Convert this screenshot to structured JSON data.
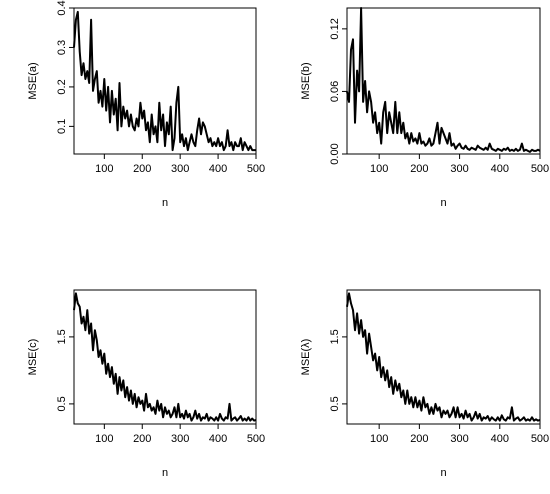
{
  "chart_data": [
    {
      "type": "line",
      "panel": "top-left",
      "xlabel": "n",
      "ylabel": "MSE(a)",
      "xlim": [
        20,
        500
      ],
      "ylim": [
        0.03,
        0.4
      ],
      "xticks": [
        100,
        200,
        300,
        400,
        500
      ],
      "yticks": [
        0.1,
        0.2,
        0.3,
        0.4
      ],
      "yticklabels": [
        "0.1",
        "0.2",
        "0.3",
        "0.4"
      ],
      "series": [
        {
          "x": [
            20,
            25,
            30,
            35,
            40,
            45,
            50,
            55,
            60,
            65,
            70,
            75,
            80,
            85,
            90,
            95,
            100,
            105,
            110,
            115,
            120,
            125,
            130,
            135,
            140,
            145,
            150,
            155,
            160,
            165,
            170,
            175,
            180,
            185,
            190,
            195,
            200,
            205,
            210,
            215,
            220,
            225,
            230,
            235,
            240,
            245,
            250,
            255,
            260,
            265,
            270,
            275,
            280,
            285,
            290,
            295,
            300,
            305,
            310,
            315,
            320,
            325,
            330,
            335,
            340,
            345,
            350,
            355,
            360,
            365,
            370,
            375,
            380,
            385,
            390,
            395,
            400,
            405,
            410,
            415,
            420,
            425,
            430,
            435,
            440,
            445,
            450,
            455,
            460,
            465,
            470,
            475,
            480,
            485,
            490,
            495,
            500
          ],
          "y": [
            0.3,
            0.37,
            0.39,
            0.29,
            0.23,
            0.26,
            0.22,
            0.24,
            0.21,
            0.37,
            0.19,
            0.22,
            0.24,
            0.16,
            0.19,
            0.15,
            0.22,
            0.14,
            0.2,
            0.11,
            0.19,
            0.13,
            0.17,
            0.09,
            0.21,
            0.1,
            0.15,
            0.12,
            0.14,
            0.1,
            0.13,
            0.1,
            0.09,
            0.12,
            0.1,
            0.16,
            0.12,
            0.14,
            0.09,
            0.11,
            0.06,
            0.13,
            0.08,
            0.1,
            0.06,
            0.16,
            0.09,
            0.13,
            0.05,
            0.11,
            0.08,
            0.15,
            0.04,
            0.07,
            0.16,
            0.2,
            0.06,
            0.08,
            0.05,
            0.07,
            0.04,
            0.06,
            0.08,
            0.06,
            0.05,
            0.09,
            0.12,
            0.08,
            0.11,
            0.1,
            0.08,
            0.06,
            0.07,
            0.05,
            0.06,
            0.05,
            0.07,
            0.05,
            0.06,
            0.04,
            0.05,
            0.09,
            0.05,
            0.06,
            0.04,
            0.06,
            0.05,
            0.05,
            0.07,
            0.04,
            0.06,
            0.05,
            0.04,
            0.05,
            0.04,
            0.04,
            0.04
          ]
        }
      ]
    },
    {
      "type": "line",
      "panel": "top-right",
      "xlabel": "n",
      "ylabel": "MSE(b)",
      "xlim": [
        20,
        500
      ],
      "ylim": [
        0,
        0.14
      ],
      "xticks": [
        100,
        200,
        300,
        400,
        500
      ],
      "yticks": [
        0,
        0.06,
        0.12
      ],
      "yticklabels": [
        "0.00",
        "0.06",
        "0.12"
      ],
      "series": [
        {
          "x": [
            20,
            25,
            30,
            35,
            40,
            45,
            50,
            55,
            60,
            65,
            70,
            75,
            80,
            85,
            90,
            95,
            100,
            105,
            110,
            115,
            120,
            125,
            130,
            135,
            140,
            145,
            150,
            155,
            160,
            165,
            170,
            175,
            180,
            185,
            190,
            195,
            200,
            205,
            210,
            215,
            220,
            225,
            230,
            235,
            240,
            245,
            250,
            255,
            260,
            265,
            270,
            275,
            280,
            285,
            290,
            295,
            300,
            305,
            310,
            315,
            320,
            325,
            330,
            335,
            340,
            345,
            350,
            355,
            360,
            365,
            370,
            375,
            380,
            385,
            390,
            395,
            400,
            405,
            410,
            415,
            420,
            425,
            430,
            435,
            440,
            445,
            450,
            455,
            460,
            465,
            470,
            475,
            480,
            485,
            490,
            495,
            500
          ],
          "y": [
            0.06,
            0.05,
            0.1,
            0.11,
            0.03,
            0.08,
            0.06,
            0.14,
            0.05,
            0.07,
            0.04,
            0.06,
            0.05,
            0.03,
            0.04,
            0.02,
            0.03,
            0.01,
            0.04,
            0.05,
            0.02,
            0.04,
            0.03,
            0.02,
            0.05,
            0.02,
            0.04,
            0.02,
            0.03,
            0.015,
            0.02,
            0.01,
            0.02,
            0.012,
            0.015,
            0.01,
            0.02,
            0.01,
            0.012,
            0.008,
            0.01,
            0.015,
            0.008,
            0.01,
            0.02,
            0.03,
            0.01,
            0.025,
            0.02,
            0.015,
            0.01,
            0.02,
            0.008,
            0.01,
            0.005,
            0.008,
            0.01,
            0.006,
            0.005,
            0.008,
            0.005,
            0.004,
            0.006,
            0.005,
            0.004,
            0.008,
            0.006,
            0.005,
            0.004,
            0.006,
            0.004,
            0.01,
            0.005,
            0.004,
            0.003,
            0.005,
            0.004,
            0.003,
            0.005,
            0.004,
            0.006,
            0.003,
            0.004,
            0.003,
            0.005,
            0.003,
            0.004,
            0.01,
            0.003,
            0.004,
            0.003,
            0.002,
            0.004,
            0.003,
            0.003,
            0.004,
            0.003
          ]
        }
      ]
    },
    {
      "type": "line",
      "panel": "bottom-left",
      "xlabel": "n",
      "ylabel": "MSE(c)",
      "xlim": [
        20,
        500
      ],
      "ylim": [
        0.2,
        2.2
      ],
      "xticks": [
        100,
        200,
        300,
        400,
        500
      ],
      "yticks": [
        0.5,
        1.5
      ],
      "yticklabels": [
        "0.5",
        "1.5"
      ],
      "series": [
        {
          "x": [
            20,
            25,
            30,
            35,
            40,
            45,
            50,
            55,
            60,
            65,
            70,
            75,
            80,
            85,
            90,
            95,
            100,
            105,
            110,
            115,
            120,
            125,
            130,
            135,
            140,
            145,
            150,
            155,
            160,
            165,
            170,
            175,
            180,
            185,
            190,
            195,
            200,
            205,
            210,
            215,
            220,
            225,
            230,
            235,
            240,
            245,
            250,
            255,
            260,
            265,
            270,
            275,
            280,
            285,
            290,
            295,
            300,
            305,
            310,
            315,
            320,
            325,
            330,
            335,
            340,
            345,
            350,
            355,
            360,
            365,
            370,
            375,
            380,
            385,
            390,
            395,
            400,
            405,
            410,
            415,
            420,
            425,
            430,
            435,
            440,
            445,
            450,
            455,
            460,
            465,
            470,
            475,
            480,
            485,
            490,
            495,
            500
          ],
          "y": [
            1.9,
            2.15,
            2.0,
            1.95,
            1.7,
            1.8,
            1.6,
            1.9,
            1.55,
            1.7,
            1.3,
            1.6,
            1.45,
            1.2,
            1.3,
            1.1,
            1.25,
            0.95,
            1.1,
            0.9,
            1.05,
            0.8,
            0.95,
            0.65,
            0.9,
            0.7,
            0.85,
            0.6,
            0.75,
            0.55,
            0.7,
            0.5,
            0.65,
            0.45,
            0.6,
            0.5,
            0.55,
            0.4,
            0.65,
            0.45,
            0.5,
            0.4,
            0.45,
            0.35,
            0.55,
            0.4,
            0.5,
            0.3,
            0.45,
            0.35,
            0.4,
            0.3,
            0.35,
            0.45,
            0.3,
            0.5,
            0.3,
            0.35,
            0.28,
            0.4,
            0.3,
            0.35,
            0.25,
            0.3,
            0.4,
            0.28,
            0.35,
            0.25,
            0.3,
            0.28,
            0.35,
            0.25,
            0.3,
            0.28,
            0.25,
            0.3,
            0.25,
            0.35,
            0.28,
            0.25,
            0.3,
            0.28,
            0.5,
            0.25,
            0.28,
            0.3,
            0.25,
            0.28,
            0.32,
            0.25,
            0.28,
            0.25,
            0.3,
            0.25,
            0.28,
            0.25,
            0.26
          ]
        }
      ]
    },
    {
      "type": "line",
      "panel": "bottom-right",
      "xlabel": "n",
      "ylabel": "MSE(λ)",
      "xlim": [
        20,
        500
      ],
      "ylim": [
        0.2,
        2.2
      ],
      "xticks": [
        100,
        200,
        300,
        400,
        500
      ],
      "yticks": [
        0.5,
        1.5
      ],
      "yticklabels": [
        "0.5",
        "1.5"
      ],
      "series": [
        {
          "x": [
            20,
            25,
            30,
            35,
            40,
            45,
            50,
            55,
            60,
            65,
            70,
            75,
            80,
            85,
            90,
            95,
            100,
            105,
            110,
            115,
            120,
            125,
            130,
            135,
            140,
            145,
            150,
            155,
            160,
            165,
            170,
            175,
            180,
            185,
            190,
            195,
            200,
            205,
            210,
            215,
            220,
            225,
            230,
            235,
            240,
            245,
            250,
            255,
            260,
            265,
            270,
            275,
            280,
            285,
            290,
            295,
            300,
            305,
            310,
            315,
            320,
            325,
            330,
            335,
            340,
            345,
            350,
            355,
            360,
            365,
            370,
            375,
            380,
            385,
            390,
            395,
            400,
            405,
            410,
            415,
            420,
            425,
            430,
            435,
            440,
            445,
            450,
            455,
            460,
            465,
            470,
            475,
            480,
            485,
            490,
            495,
            500
          ],
          "y": [
            1.95,
            2.15,
            2.0,
            1.9,
            1.6,
            1.85,
            1.55,
            1.75,
            1.5,
            1.6,
            1.25,
            1.55,
            1.35,
            1.15,
            1.25,
            1.0,
            1.2,
            0.9,
            1.05,
            0.85,
            1.0,
            0.75,
            0.9,
            0.65,
            0.85,
            0.7,
            0.8,
            0.6,
            0.7,
            0.5,
            0.7,
            0.5,
            0.6,
            0.45,
            0.6,
            0.45,
            0.55,
            0.4,
            0.6,
            0.45,
            0.5,
            0.35,
            0.45,
            0.35,
            0.5,
            0.4,
            0.45,
            0.3,
            0.4,
            0.35,
            0.4,
            0.3,
            0.35,
            0.45,
            0.3,
            0.45,
            0.3,
            0.35,
            0.28,
            0.4,
            0.3,
            0.35,
            0.25,
            0.3,
            0.38,
            0.28,
            0.35,
            0.25,
            0.3,
            0.28,
            0.32,
            0.25,
            0.3,
            0.27,
            0.25,
            0.3,
            0.25,
            0.33,
            0.27,
            0.25,
            0.3,
            0.28,
            0.45,
            0.25,
            0.28,
            0.3,
            0.25,
            0.27,
            0.3,
            0.25,
            0.27,
            0.25,
            0.3,
            0.25,
            0.27,
            0.25,
            0.26
          ]
        }
      ]
    }
  ]
}
